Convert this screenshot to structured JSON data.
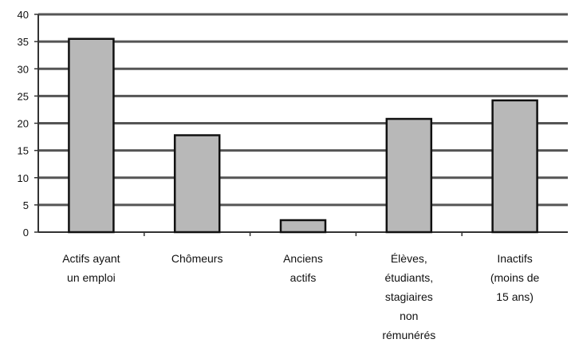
{
  "chart_data": {
    "type": "bar",
    "categories": [
      [
        "Actifs ayant",
        "un emploi"
      ],
      [
        "Chômeurs"
      ],
      [
        "Anciens",
        "actifs"
      ],
      [
        "Élèves,",
        "étudiants,",
        "stagiaires",
        "non",
        "rémunérés"
      ],
      [
        "Inactifs",
        "(moins de",
        "15 ans)"
      ]
    ],
    "values": [
      35.5,
      17.8,
      2.2,
      20.8,
      24.2
    ],
    "ylim": [
      0,
      40
    ],
    "yticks": [
      0,
      5,
      10,
      15,
      20,
      25,
      30,
      35,
      40
    ],
    "grid": true,
    "legend": "none",
    "colors": {
      "bar_fill": "#b8b8b8",
      "bar_stroke": "#111111",
      "grid": "#555555",
      "axis": "#333333"
    }
  }
}
